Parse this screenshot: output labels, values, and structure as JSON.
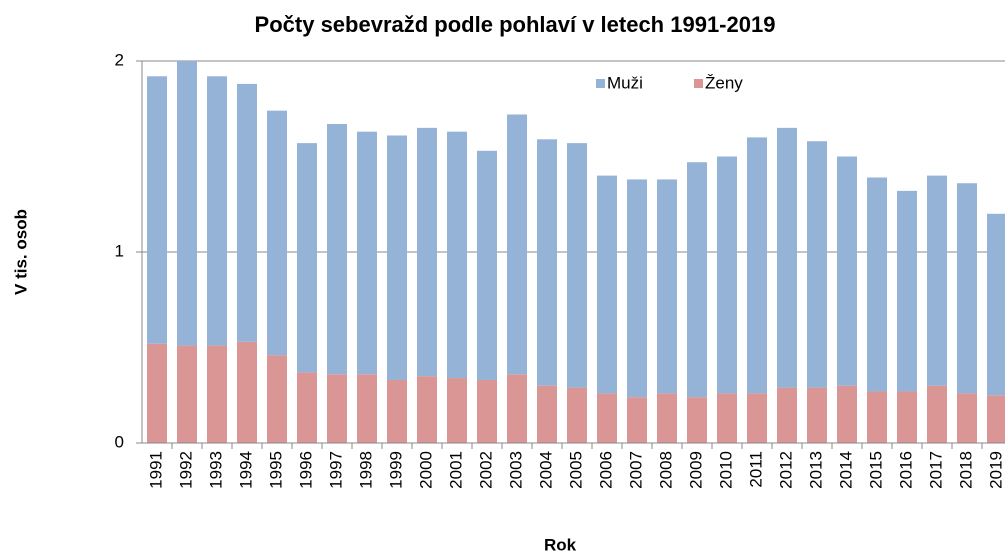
{
  "chart_data": {
    "type": "stacked-bar",
    "title": "Počty sebevražd podle pohlaví v letech 1991-2019",
    "x_label": "Rok",
    "y_label": "V tis. osob",
    "categories": [
      "1991",
      "1992",
      "1993",
      "1994",
      "1995",
      "1996",
      "1997",
      "1998",
      "1999",
      "2000",
      "2001",
      "2002",
      "2003",
      "2004",
      "2005",
      "2006",
      "2007",
      "2008",
      "2009",
      "2010",
      "2011",
      "2012",
      "2013",
      "2014",
      "2015",
      "2016",
      "2017",
      "2018",
      "2019"
    ],
    "series": [
      {
        "name": "Muži",
        "color": "#95b3d7",
        "values": [
          1.4,
          1.49,
          1.41,
          1.35,
          1.28,
          1.2,
          1.31,
          1.27,
          1.28,
          1.3,
          1.29,
          1.2,
          1.36,
          1.29,
          1.28,
          1.14,
          1.14,
          1.12,
          1.23,
          1.24,
          1.34,
          1.36,
          1.29,
          1.2,
          1.12,
          1.05,
          1.1,
          1.1,
          0.95
        ]
      },
      {
        "name": "Ženy",
        "color": "#d99694",
        "values": [
          0.52,
          0.51,
          0.51,
          0.53,
          0.46,
          0.37,
          0.36,
          0.36,
          0.33,
          0.35,
          0.34,
          0.33,
          0.36,
          0.3,
          0.29,
          0.26,
          0.24,
          0.26,
          0.24,
          0.26,
          0.26,
          0.29,
          0.29,
          0.3,
          0.27,
          0.27,
          0.3,
          0.26,
          0.25
        ]
      }
    ],
    "ylim": [
      0,
      2
    ],
    "yticks": [
      0,
      1,
      2
    ],
    "grid": true,
    "legend": "top"
  }
}
